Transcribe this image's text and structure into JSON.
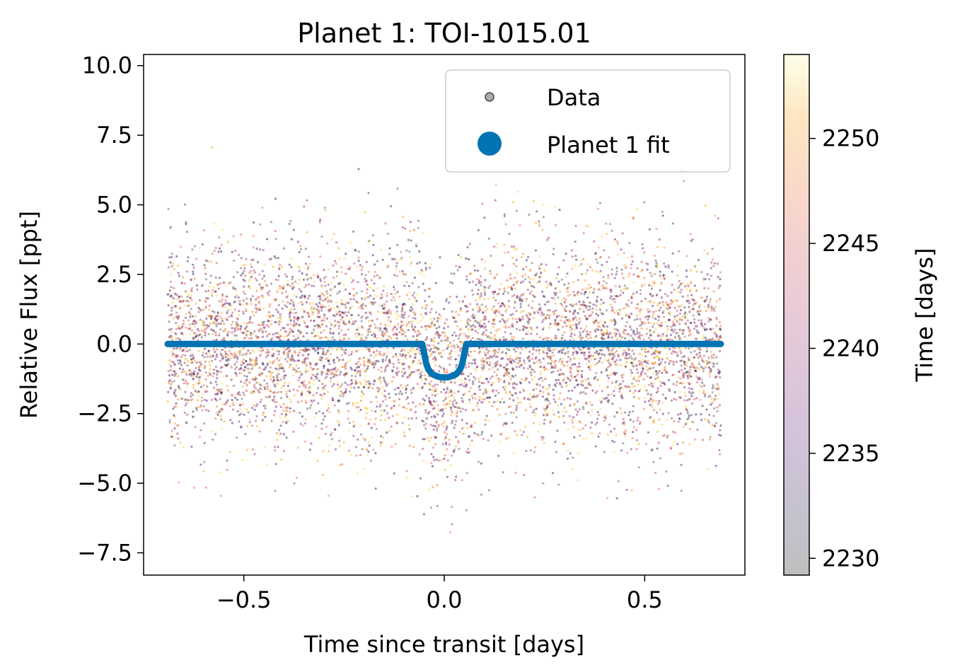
{
  "chart_data": {
    "type": "scatter",
    "title": "Planet 1: TOI-1015.01",
    "xlabel": "Time since transit [days]",
    "ylabel": "Relative Flux [ppt]",
    "xlim": [
      -0.75,
      0.75
    ],
    "ylim": [
      -8.3,
      10.4
    ],
    "x_ticks": [
      -0.5,
      0.0,
      0.5
    ],
    "x_tick_labels": [
      "−0.5",
      "0.0",
      "0.5"
    ],
    "y_ticks": [
      -7.5,
      -5.0,
      -2.5,
      0.0,
      2.5,
      5.0,
      7.5,
      10.0
    ],
    "y_tick_labels": [
      "−7.5",
      "−5.0",
      "−2.5",
      "0.0",
      "2.5",
      "5.0",
      "7.5",
      "10.0"
    ],
    "grid": false,
    "legend_position": "top-right",
    "series": [
      {
        "name": "Data",
        "kind": "scatter",
        "color": "#888888",
        "x_range": [
          -0.69,
          0.69
        ],
        "approx_point_count": 6000,
        "y_std_ppt": 1.8,
        "colored_by": "Time [days]"
      },
      {
        "name": "Planet 1 fit",
        "kind": "line",
        "color": "#0173b2",
        "x": [
          -0.69,
          -0.055,
          -0.05,
          -0.045,
          -0.04,
          -0.035,
          -0.03,
          -0.02,
          -0.01,
          0.0,
          0.01,
          0.02,
          0.03,
          0.035,
          0.04,
          0.045,
          0.05,
          0.055,
          0.69
        ],
        "y": [
          0.0,
          0.0,
          -0.35,
          -0.7,
          -0.9,
          -1.0,
          -1.08,
          -1.15,
          -1.19,
          -1.2,
          -1.19,
          -1.15,
          -1.08,
          -1.0,
          -0.9,
          -0.7,
          -0.35,
          0.0,
          0.0
        ]
      }
    ],
    "colorbar": {
      "label": "Time [days]",
      "range": [
        2229.2,
        2254.0
      ],
      "ticks": [
        2230,
        2235,
        2240,
        2245,
        2250
      ],
      "tick_labels": [
        "2230",
        "2235",
        "2240",
        "2245",
        "2250"
      ],
      "colormap": "inferno",
      "alpha": 0.25
    }
  }
}
